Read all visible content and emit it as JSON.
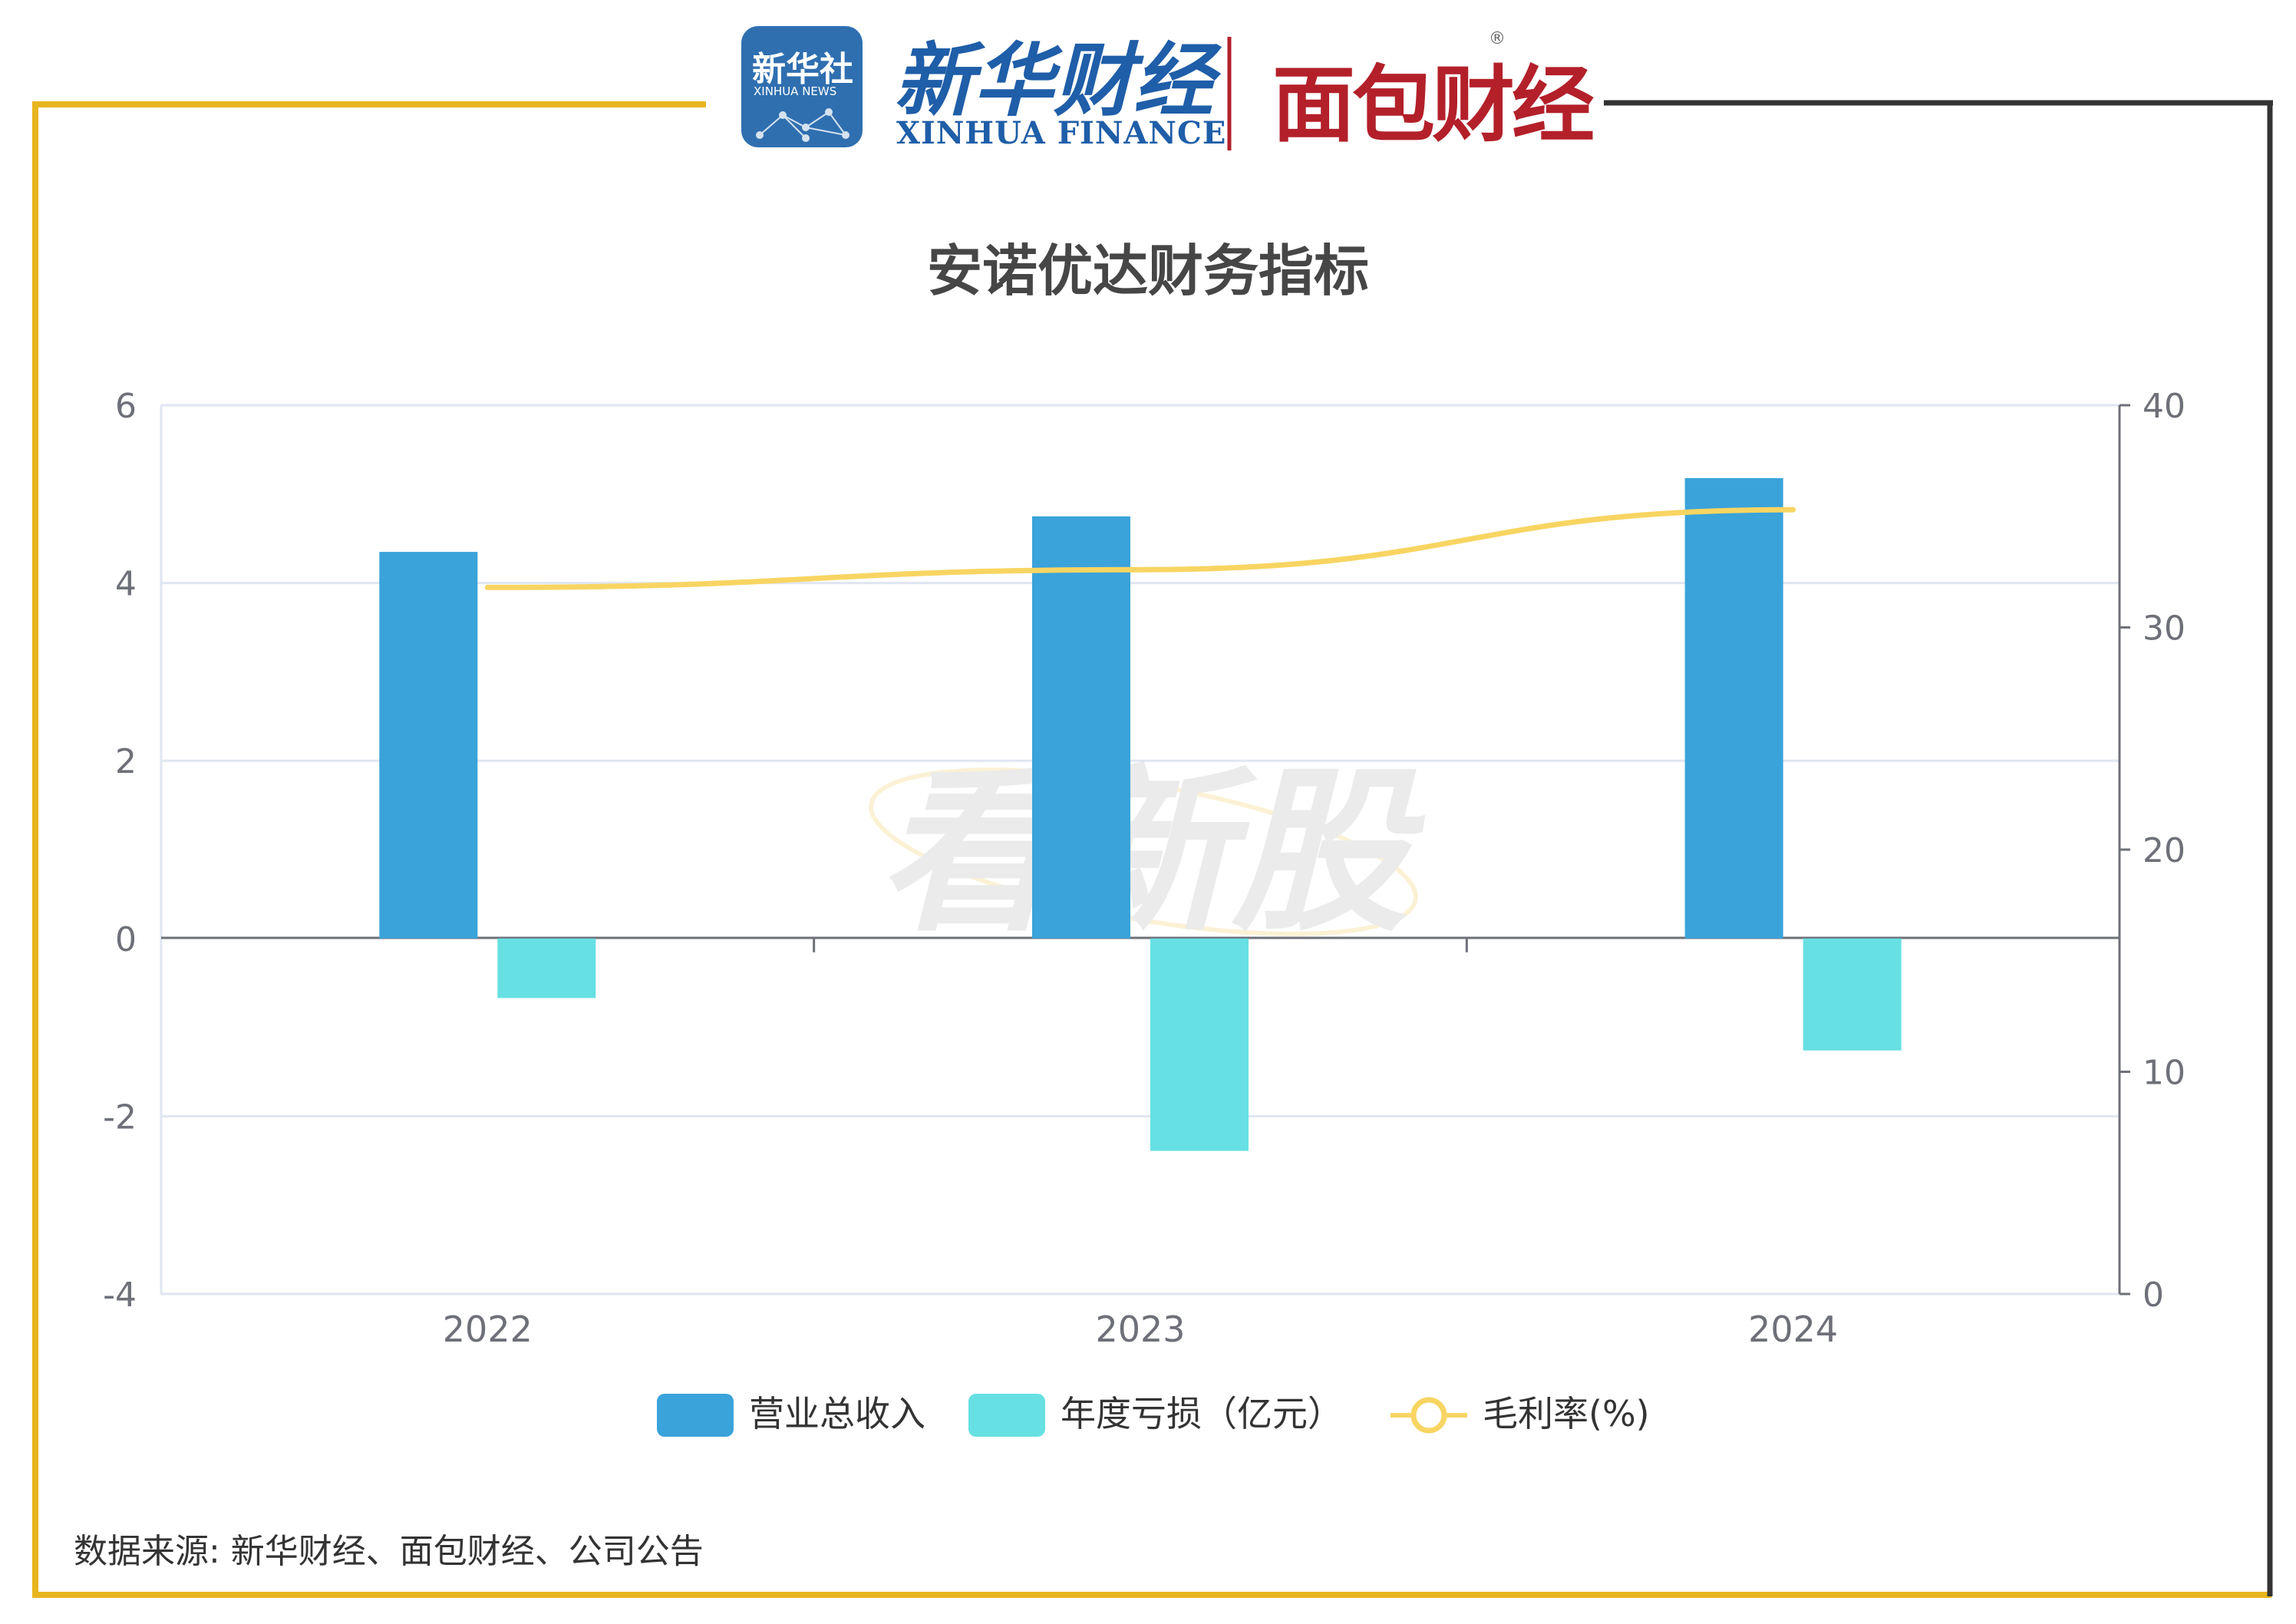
{
  "header": {
    "xinhua_news_cn": "新华社",
    "xinhua_news_en": "XINHUA NEWS",
    "xinhua_finance_cn": "新华财经",
    "xinhua_finance_en": "XINHUA FINANCE",
    "mianbao_cn": "面包财经",
    "registered_mark": "®"
  },
  "watermark": "看新股",
  "source": "数据来源: 新华财经、面包财经、公司公告",
  "colors": {
    "frame_left": "#e8b51e",
    "frame_right": "#333333",
    "revenue": "#3aa3da",
    "loss": "#67e0e3",
    "margin": "#f8d562",
    "title": "#464646",
    "axis_text": "#6e7079",
    "grid": "#e0e6f1"
  },
  "chart_data": {
    "type": "bar",
    "title": "安诺优达财务指标",
    "categories": [
      "2022",
      "2023",
      "2024"
    ],
    "y_left": {
      "min": -4,
      "max": 6,
      "ticks": [
        -4,
        -2,
        0,
        2,
        4,
        6
      ]
    },
    "y_right": {
      "min": 0,
      "max": 40,
      "ticks": [
        0,
        10,
        20,
        30,
        40
      ]
    },
    "series": [
      {
        "name": "营业总收入",
        "type": "bar",
        "axis": "left",
        "values": [
          4.35,
          4.75,
          5.18
        ]
      },
      {
        "name": "年度亏损（亿元）",
        "type": "bar",
        "axis": "left",
        "values": [
          -0.67,
          -2.39,
          -1.26
        ]
      },
      {
        "name": "毛利率(%)",
        "type": "line",
        "axis": "right",
        "values": [
          31.8,
          32.6,
          35.3
        ]
      }
    ],
    "legend_position": "bottom-center",
    "grid": true
  }
}
